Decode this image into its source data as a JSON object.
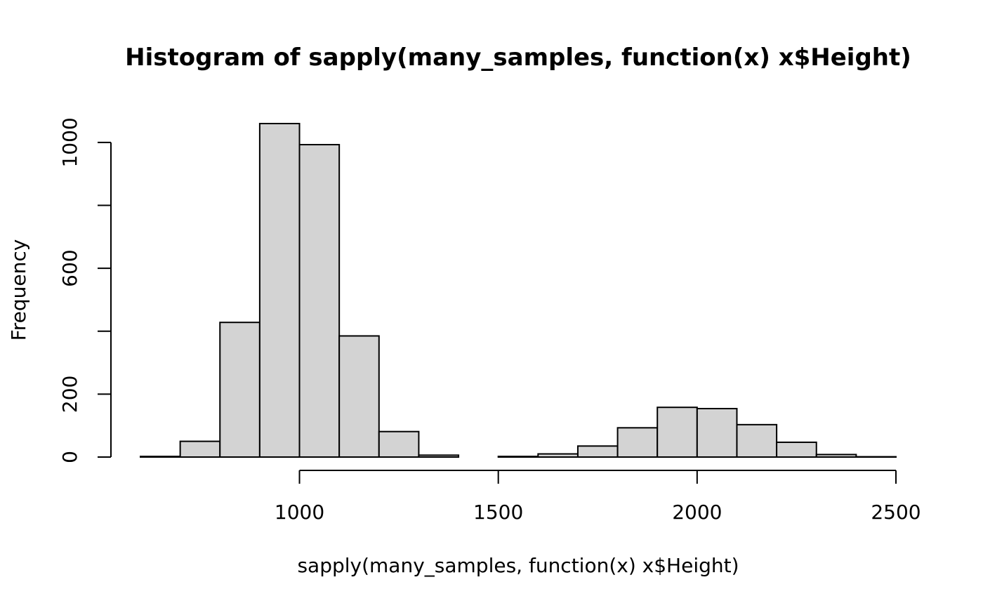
{
  "chart_data": {
    "type": "bar",
    "subtype": "histogram",
    "title": "Histogram of sapply(many_samples, function(x) x$Height)",
    "xlabel": "sapply(many_samples, function(x) x$Height)",
    "ylabel": "Frequency",
    "bins": [
      {
        "x0": 600,
        "x1": 700,
        "count": 2
      },
      {
        "x0": 700,
        "x1": 800,
        "count": 50
      },
      {
        "x0": 800,
        "x1": 900,
        "count": 428
      },
      {
        "x0": 900,
        "x1": 1000,
        "count": 1060
      },
      {
        "x0": 1000,
        "x1": 1100,
        "count": 993
      },
      {
        "x0": 1100,
        "x1": 1200,
        "count": 385
      },
      {
        "x0": 1200,
        "x1": 1300,
        "count": 81
      },
      {
        "x0": 1300,
        "x1": 1400,
        "count": 6
      },
      {
        "x0": 1400,
        "x1": 1500,
        "count": 0
      },
      {
        "x0": 1500,
        "x1": 1600,
        "count": 2
      },
      {
        "x0": 1600,
        "x1": 1700,
        "count": 10
      },
      {
        "x0": 1700,
        "x1": 1800,
        "count": 35
      },
      {
        "x0": 1800,
        "x1": 1900,
        "count": 93
      },
      {
        "x0": 1900,
        "x1": 2000,
        "count": 158
      },
      {
        "x0": 2000,
        "x1": 2100,
        "count": 154
      },
      {
        "x0": 2100,
        "x1": 2200,
        "count": 103
      },
      {
        "x0": 2200,
        "x1": 2300,
        "count": 47
      },
      {
        "x0": 2300,
        "x1": 2400,
        "count": 8
      },
      {
        "x0": 2400,
        "x1": 2500,
        "count": 1
      }
    ],
    "xlim": [
      600,
      2500
    ],
    "ylim": [
      0,
      1060
    ],
    "xticks": [
      1000,
      1500,
      2000,
      2500
    ],
    "yticks": [
      0,
      200,
      400,
      600,
      800,
      1000
    ],
    "ytick_labels": [
      "0",
      "200",
      "",
      "600",
      "",
      "1000"
    ],
    "grid": false,
    "bar_fill": "#d3d3d3",
    "bar_stroke": "#000000"
  }
}
